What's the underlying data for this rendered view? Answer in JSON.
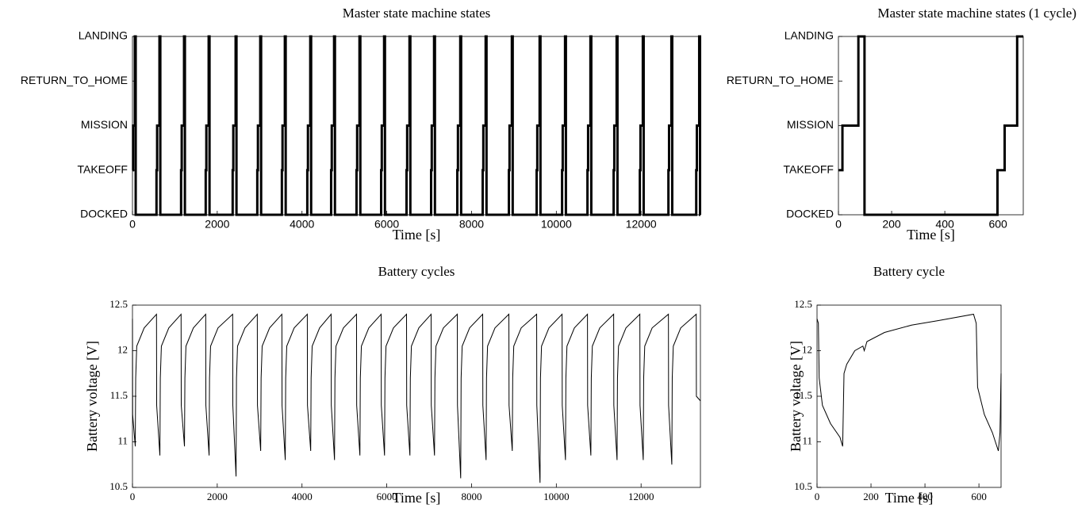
{
  "chart_data": [
    {
      "type": "line",
      "step": true,
      "title": "Master state machine states",
      "xlabel": "Time [s]",
      "color": "#000000",
      "x": [
        0,
        15,
        56,
        76,
        567,
        582,
        637,
        657,
        1147,
        1162,
        1217,
        1237,
        1728,
        1743,
        1798,
        1818,
        2364,
        2379,
        2434,
        2454,
        2945,
        2960,
        3015,
        3035,
        3525,
        3540,
        3595,
        3615,
        4125,
        4140,
        4195,
        4215,
        4687,
        4702,
        4757,
        4777,
        5286,
        5301,
        5356,
        5376,
        5867,
        5882,
        5937,
        5957,
        6466,
        6481,
        6536,
        6556,
        7046,
        7061,
        7116,
        7136,
        7664,
        7679,
        7734,
        7754,
        8263,
        8278,
        8333,
        8353,
        8881,
        8896,
        8951,
        8971,
        9536,
        9551,
        9606,
        9626,
        10136,
        10151,
        10206,
        10226,
        10735,
        10750,
        10805,
        10825,
        11353,
        11368,
        11423,
        11443,
        11971,
        11986,
        12041,
        12061,
        12645,
        12660,
        12715,
        12735,
        13301,
        13316,
        13371,
        13391,
        13400
      ],
      "values": [
        1,
        2,
        4,
        0,
        1,
        2,
        4,
        0,
        1,
        2,
        4,
        0,
        1,
        2,
        4,
        0,
        1,
        2,
        4,
        0,
        1,
        2,
        4,
        0,
        1,
        2,
        4,
        0,
        1,
        2,
        4,
        0,
        1,
        2,
        4,
        0,
        1,
        2,
        4,
        0,
        1,
        2,
        4,
        0,
        1,
        2,
        4,
        0,
        1,
        2,
        4,
        0,
        1,
        2,
        4,
        0,
        1,
        2,
        4,
        0,
        1,
        2,
        4,
        0,
        1,
        2,
        4,
        0,
        1,
        2,
        4,
        0,
        1,
        2,
        4,
        0,
        1,
        2,
        4,
        0,
        1,
        2,
        4,
        0,
        1,
        2,
        4,
        0,
        1,
        2,
        4,
        0,
        0
      ],
      "xlim": [
        0,
        13400
      ],
      "xticks": [
        0,
        2000,
        4000,
        6000,
        8000,
        10000,
        12000
      ],
      "ylim": [
        0,
        4
      ],
      "yticks": [
        {
          "value": 0,
          "label": "DOCKED"
        },
        {
          "value": 1,
          "label": "TAKEOFF"
        },
        {
          "value": 2,
          "label": "MISSION"
        },
        {
          "value": 3,
          "label": "RETURN_TO_HOME"
        },
        {
          "value": 4,
          "label": "LANDING"
        }
      ]
    },
    {
      "type": "line",
      "step": true,
      "title": "Master state machine states (1 cycle)",
      "xlabel": "Time [s]",
      "color": "#000000",
      "x": [
        0,
        15,
        75,
        98,
        598,
        625,
        672,
        695
      ],
      "values": [
        1,
        2,
        4,
        0,
        1,
        2,
        4,
        4
      ],
      "xlim": [
        0,
        695
      ],
      "xticks": [
        0,
        200,
        400,
        600
      ],
      "ylim": [
        0,
        4
      ],
      "yticks": [
        {
          "value": 0,
          "label": "DOCKED"
        },
        {
          "value": 1,
          "label": "TAKEOFF"
        },
        {
          "value": 2,
          "label": "MISSION"
        },
        {
          "value": 3,
          "label": "RETURN_TO_HOME"
        },
        {
          "value": 4,
          "label": "LANDING"
        }
      ]
    },
    {
      "type": "line",
      "title": "Battery cycles",
      "xlabel": "Time [s]",
      "ylabel": "Battery voltage [V]",
      "color": "#000000",
      "x": [
        0,
        4,
        66,
        76,
        101,
        276,
        567,
        571,
        647,
        657,
        682,
        857,
        1147,
        1151,
        1227,
        1237,
        1262,
        1437,
        1728,
        1732,
        1808,
        1818,
        1843,
        2018,
        2364,
        2368,
        2444,
        2454,
        2479,
        2654,
        2945,
        2949,
        3025,
        3035,
        3060,
        3235,
        3525,
        3529,
        3605,
        3615,
        3640,
        3815,
        4125,
        4129,
        4205,
        4215,
        4240,
        4415,
        4687,
        4691,
        4767,
        4777,
        4802,
        4977,
        5286,
        5290,
        5366,
        5376,
        5401,
        5576,
        5867,
        5871,
        5947,
        5957,
        5982,
        6157,
        6466,
        6470,
        6546,
        6556,
        6581,
        6756,
        7046,
        7050,
        7126,
        7136,
        7161,
        7336,
        7664,
        7668,
        7744,
        7754,
        7779,
        7954,
        8263,
        8267,
        8343,
        8353,
        8378,
        8553,
        8881,
        8885,
        8961,
        8971,
        8996,
        9171,
        9536,
        9540,
        9616,
        9626,
        9651,
        9826,
        10136,
        10140,
        10216,
        10226,
        10251,
        10426,
        10735,
        10739,
        10815,
        10825,
        10850,
        11025,
        11353,
        11357,
        11433,
        11443,
        11468,
        11643,
        11971,
        11975,
        12051,
        12061,
        12086,
        12261,
        12645,
        12649,
        12725,
        12735,
        12760,
        12935,
        13301,
        13305,
        13400
      ],
      "values": [
        12.35,
        11.3,
        10.95,
        11.7,
        12.05,
        12.25,
        12.4,
        11.4,
        10.85,
        11.7,
        12.05,
        12.25,
        12.4,
        11.4,
        10.95,
        11.7,
        12.05,
        12.25,
        12.4,
        11.4,
        10.85,
        11.7,
        12.05,
        12.25,
        12.4,
        11.4,
        10.62,
        11.7,
        12.05,
        12.25,
        12.4,
        11.4,
        10.9,
        11.7,
        12.05,
        12.25,
        12.4,
        11.4,
        10.8,
        11.7,
        12.05,
        12.25,
        12.4,
        11.4,
        10.9,
        11.7,
        12.05,
        12.25,
        12.4,
        11.4,
        10.8,
        11.7,
        12.05,
        12.25,
        12.4,
        11.4,
        10.85,
        11.7,
        12.05,
        12.25,
        12.4,
        11.4,
        10.85,
        11.7,
        12.05,
        12.25,
        12.4,
        11.4,
        10.85,
        11.7,
        12.05,
        12.25,
        12.4,
        11.4,
        10.85,
        11.7,
        12.05,
        12.25,
        12.4,
        11.4,
        10.6,
        11.7,
        12.05,
        12.25,
        12.4,
        11.4,
        10.8,
        11.7,
        12.05,
        12.25,
        12.4,
        11.4,
        10.9,
        11.7,
        12.05,
        12.25,
        12.4,
        11.4,
        10.55,
        11.7,
        12.05,
        12.25,
        12.4,
        11.4,
        10.8,
        11.7,
        12.05,
        12.25,
        12.4,
        11.4,
        10.85,
        11.7,
        12.05,
        12.25,
        12.4,
        11.4,
        10.8,
        11.7,
        12.05,
        12.25,
        12.4,
        11.4,
        10.8,
        11.7,
        12.05,
        12.25,
        12.4,
        11.4,
        10.75,
        11.7,
        12.05,
        12.25,
        12.4,
        11.5,
        11.45
      ],
      "xlim": [
        0,
        13400
      ],
      "xticks": [
        0,
        2000,
        4000,
        6000,
        8000,
        10000,
        12000
      ],
      "ylim": [
        10.5,
        12.5
      ],
      "yticks": [
        10.5,
        11,
        11.5,
        12,
        12.5
      ]
    },
    {
      "type": "line",
      "title": "Battery cycle",
      "xlabel": "Time [s]",
      "ylabel": "Battery voltage [V]",
      "color": "#000000",
      "x": [
        0,
        5,
        8,
        20,
        50,
        85,
        95,
        100,
        110,
        140,
        170,
        175,
        185,
        250,
        350,
        450,
        580,
        590,
        595,
        620,
        650,
        672,
        678,
        682
      ],
      "values": [
        12.35,
        12.3,
        11.7,
        11.4,
        11.2,
        11.05,
        10.95,
        11.75,
        11.85,
        12.0,
        12.05,
        12.0,
        12.1,
        12.2,
        12.28,
        12.33,
        12.4,
        12.3,
        11.6,
        11.3,
        11.1,
        10.9,
        11.1,
        11.75
      ],
      "xlim": [
        0,
        682
      ],
      "xticks": [
        0,
        200,
        400,
        600
      ],
      "ylim": [
        10.5,
        12.5
      ],
      "yticks": [
        10.5,
        11,
        11.5,
        12,
        12.5
      ]
    }
  ]
}
